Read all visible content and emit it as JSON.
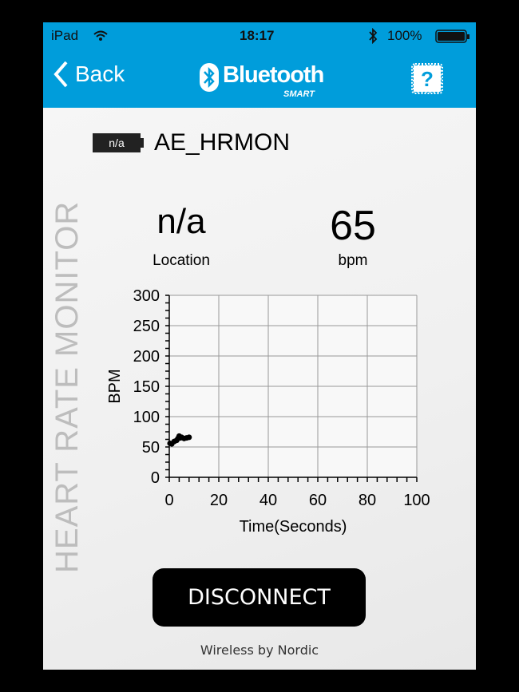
{
  "status_bar": {
    "device": "iPad",
    "time": "18:17",
    "battery": "100%",
    "icons": [
      "wifi-icon",
      "bluetooth-icon",
      "battery-icon"
    ]
  },
  "nav": {
    "back_label": "Back",
    "logo_text": "Bluetooth",
    "logo_sub": "SMART",
    "help_label": "?"
  },
  "device": {
    "battery_label": "n/a",
    "name": "AE_HRMON"
  },
  "readings": {
    "location_value": "n/a",
    "location_label": "Location",
    "bpm_value": "65",
    "bpm_label": "bpm"
  },
  "side_title": "HEART RATE MONITOR",
  "chart_data": {
    "type": "scatter",
    "xlabel": "Time(Seconds)",
    "ylabel": "BPM",
    "xlim": [
      0,
      100
    ],
    "ylim": [
      0,
      300
    ],
    "xticks": [
      "0",
      "20",
      "40",
      "60",
      "80",
      "100"
    ],
    "yticks": [
      "0",
      "50",
      "100",
      "150",
      "200",
      "250",
      "300"
    ],
    "grid": true,
    "x": [
      0.3,
      1,
      2,
      3,
      3.5,
      4,
      4.5,
      5,
      6,
      7,
      8
    ],
    "y": [
      56,
      55,
      59,
      61,
      64,
      68,
      65,
      66,
      64,
      65,
      66
    ],
    "color": "#000000"
  },
  "disconnect_label": "DISCONNECT",
  "footer": "Wireless by Nordic",
  "colors": {
    "header": "#009ddb"
  }
}
